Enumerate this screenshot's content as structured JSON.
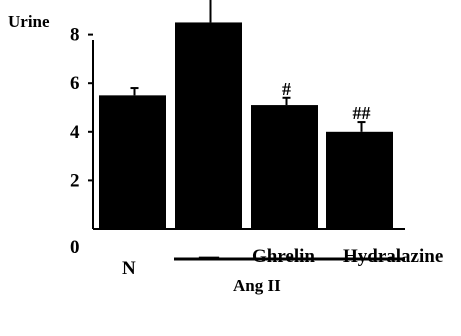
{
  "chart_data": {
    "type": "bar",
    "ylabel": "Urine",
    "ylim": [
      0,
      10
    ],
    "yticks": [
      0,
      2,
      4,
      6,
      8
    ],
    "categories": [
      "N",
      "",
      "Ghrelin",
      "Hydralazine"
    ],
    "dash_label": "—",
    "values": [
      5.5,
      8.5,
      5.1,
      4.0
    ],
    "errors": [
      0.3,
      1.0,
      0.3,
      0.4
    ],
    "annotations": [
      "",
      "**",
      "#",
      "##"
    ],
    "group_label": "Ang II",
    "bar_color": "#000000",
    "grid": false,
    "legend": "none"
  }
}
